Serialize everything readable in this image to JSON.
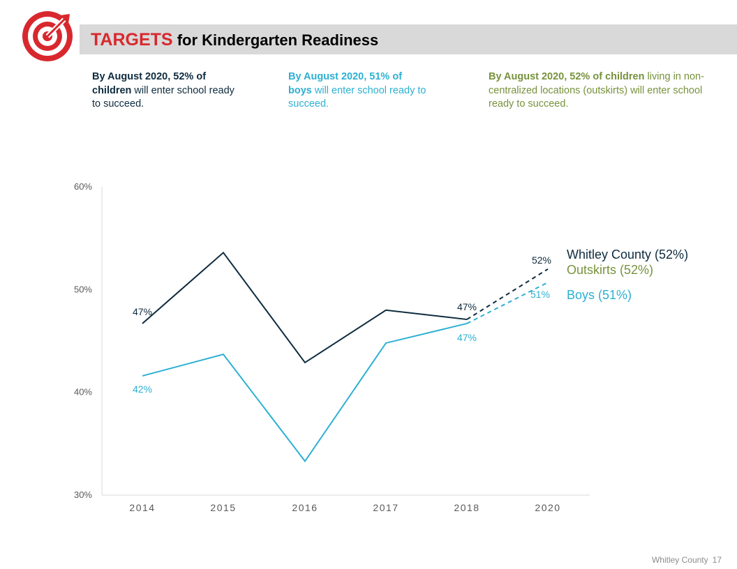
{
  "header": {
    "title_highlight": "TARGETS",
    "title_rest": " for Kindergarten Readiness",
    "logo_icon": "target-arrow-icon",
    "accent_color": "#d8282e"
  },
  "targets": [
    {
      "bold": "By August 2020, 52% of children",
      "rest": " will enter school ready to succeed.",
      "color": "#0e2b3e"
    },
    {
      "bold": "By August 2020, 51% of boys",
      "rest": " will enter school ready to succeed.",
      "color": "#2cb0d2"
    },
    {
      "bold": "By August 2020, 52% of children",
      "rest": " living in non-centralized locations (outskirts) will enter school ready to succeed.",
      "color": "#77923c"
    }
  ],
  "chart_data": {
    "type": "line",
    "categories": [
      "2014",
      "2015",
      "2016",
      "2017",
      "2018",
      "2020"
    ],
    "ylim": [
      30,
      60
    ],
    "yticks": [
      "30%",
      "40%",
      "50%",
      "60%"
    ],
    "series": [
      {
        "name": "Whitley County (52%)",
        "color": "#0e2b3e",
        "values": [
          46.7,
          53.6,
          42.9,
          48.0,
          47.1,
          52.0
        ],
        "projected_from_index": 4
      },
      {
        "name": "Boys (51%)",
        "color": "#2cb0d2",
        "values": [
          41.6,
          43.7,
          33.3,
          44.8,
          46.7,
          50.7
        ],
        "projected_from_index": 4
      }
    ],
    "extra_legend": [
      {
        "name": "Outskirts (52%)",
        "color": "#77923c"
      }
    ],
    "data_labels": [
      {
        "series": 0,
        "index": 0,
        "text": "47%"
      },
      {
        "series": 0,
        "index": 4,
        "text": "47%"
      },
      {
        "series": 0,
        "index": 5,
        "text": "52%"
      },
      {
        "series": 1,
        "index": 0,
        "text": "42%"
      },
      {
        "series": 1,
        "index": 4,
        "text": "47%"
      },
      {
        "series": 1,
        "index": 5,
        "text": "51%"
      }
    ],
    "grid": false
  },
  "footer": {
    "source": "Whitley County",
    "page": "17"
  }
}
